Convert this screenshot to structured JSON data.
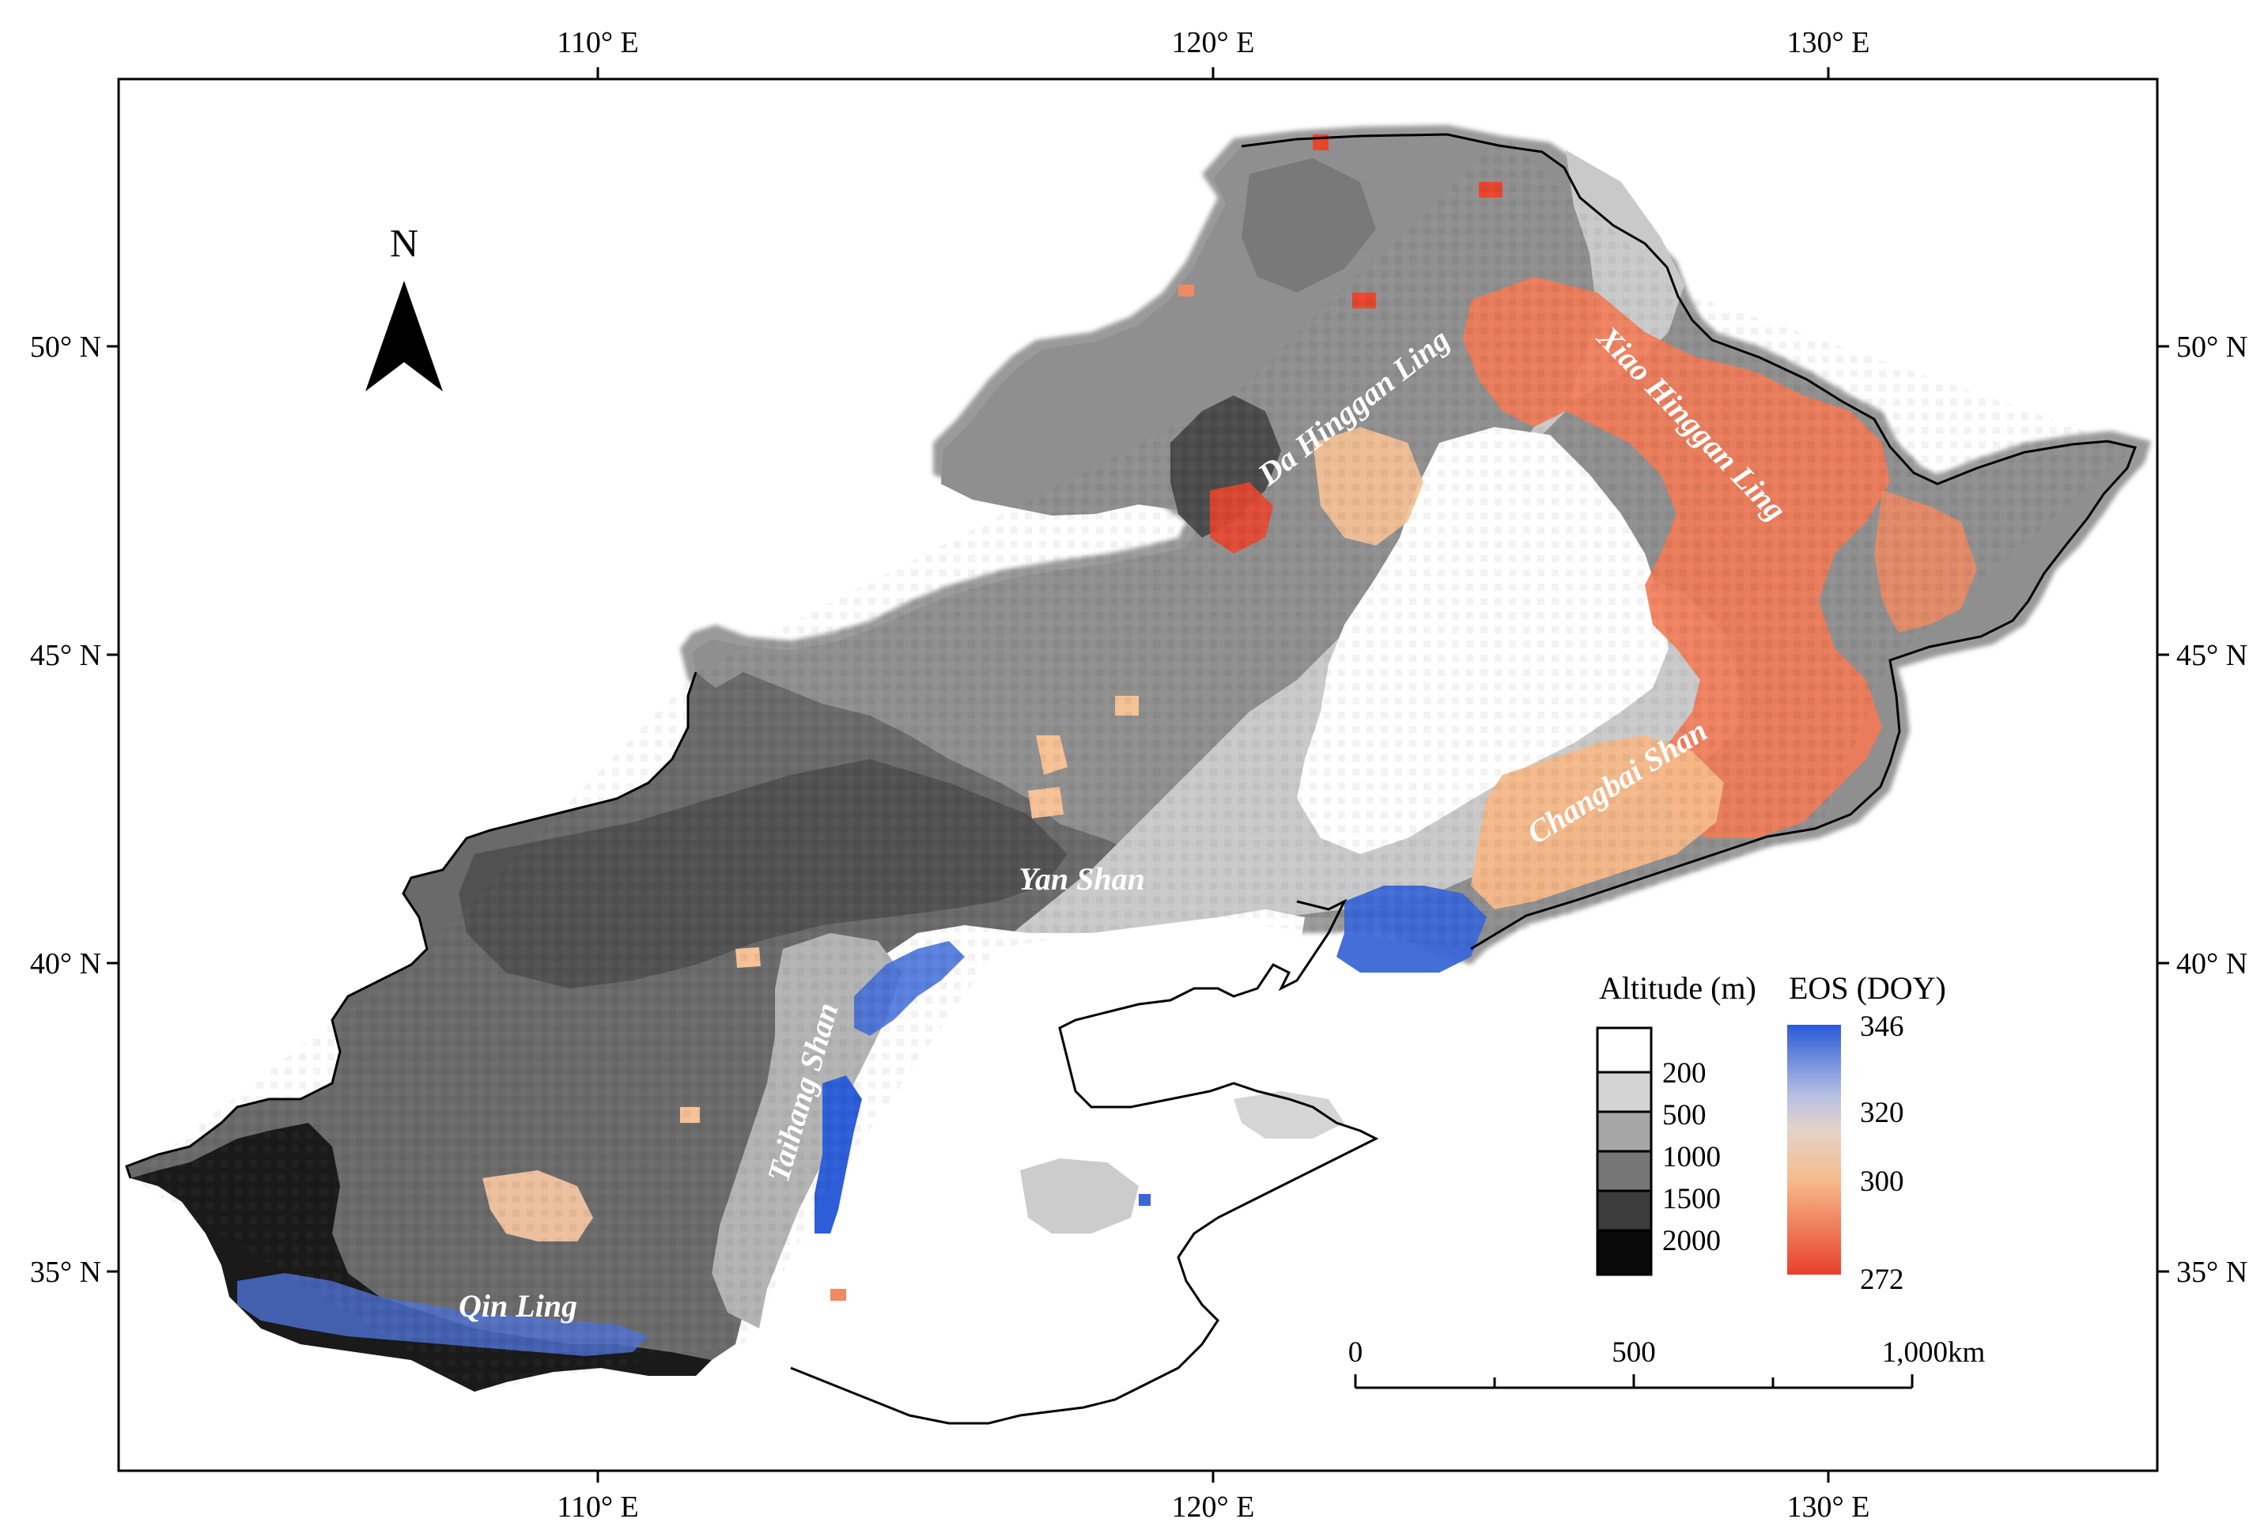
{
  "axes": {
    "top_ticks": [
      "110° E",
      "120° E",
      "130° E"
    ],
    "bottom_ticks": [
      "110° E",
      "120° E",
      "130° E"
    ],
    "left_ticks": [
      "50° N",
      "45° N",
      "40° N",
      "35° N"
    ],
    "right_ticks": [
      "50° N",
      "45° N",
      "40° N",
      "35° N"
    ]
  },
  "north_arrow": {
    "label": "N",
    "icon": "north-arrow-icon"
  },
  "mountain_ranges": [
    {
      "name": "Da Hinggan Ling"
    },
    {
      "name": "Xiao Hinggan Ling"
    },
    {
      "name": "Changbai Shan"
    },
    {
      "name": "Yan Shan"
    },
    {
      "name": "Taihang Shan"
    },
    {
      "name": "Qin Ling"
    }
  ],
  "legend_altitude": {
    "title": "Altitude (m)",
    "classes": [
      "200",
      "500",
      "1000",
      "1500",
      "2000"
    ],
    "colors": [
      "#ffffff",
      "#d4d4d4",
      "#a6a6a6",
      "#767676",
      "#3c3c3c",
      "#0a0a0a"
    ]
  },
  "legend_eos": {
    "title": "EOS (DOY)",
    "ticks": [
      "346",
      "320",
      "300",
      "272"
    ],
    "colors": [
      "#2e5fd8",
      "#b9c3e6",
      "#f4c39a",
      "#f07a52",
      "#e8412c"
    ]
  },
  "scale_bar": {
    "labels": [
      "0",
      "500",
      "1,000km"
    ]
  }
}
